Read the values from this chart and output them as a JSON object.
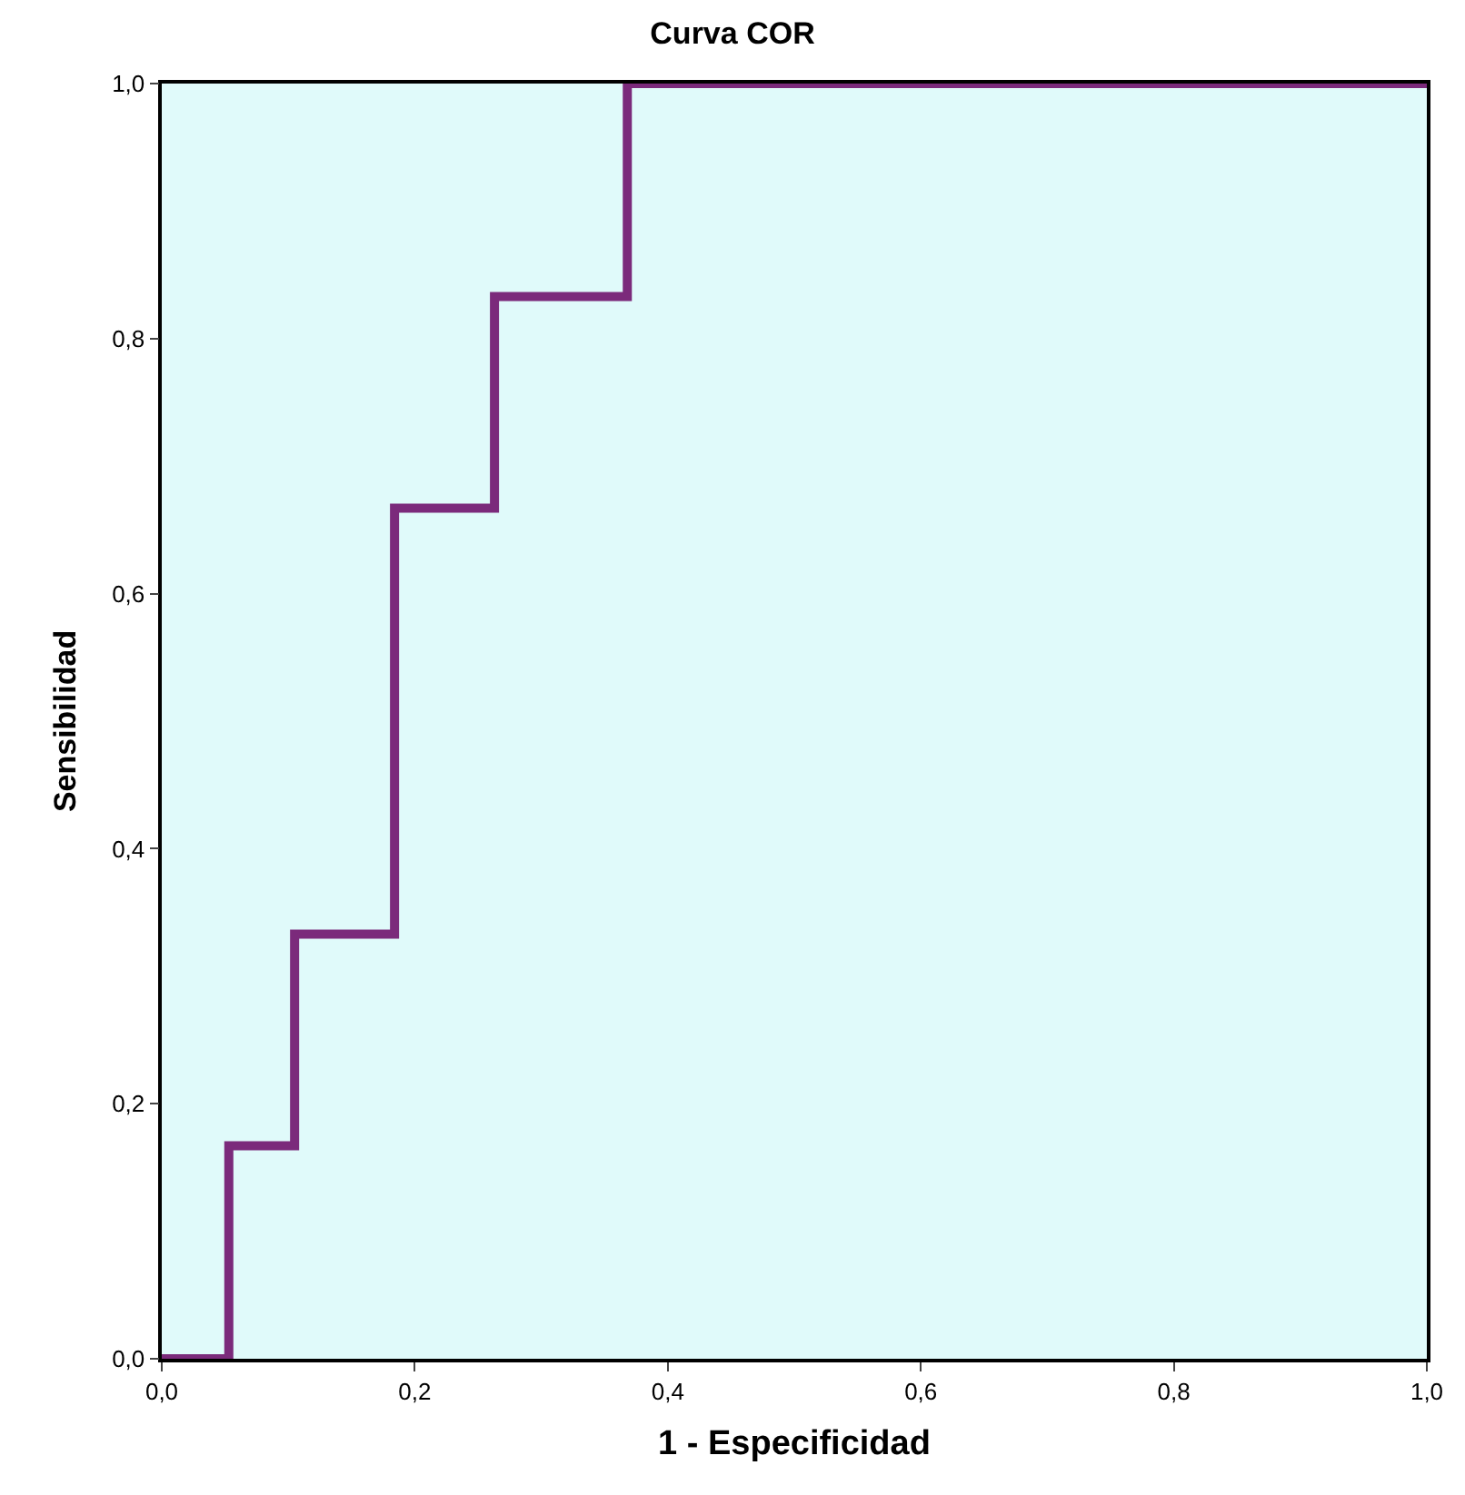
{
  "chart_data": {
    "type": "step",
    "title": "Curva COR",
    "xlabel": "1 - Especificidad",
    "ylabel": "Sensibilidad",
    "x": [
      0,
      0.053,
      0.105,
      0.184,
      0.263,
      0.368,
      1.0
    ],
    "series": [
      {
        "color": "#7b2a7b",
        "values": [
          0,
          0.167,
          0.333,
          0.667,
          0.833,
          1.0,
          1.0
        ]
      }
    ],
    "xlim": [
      0,
      1
    ],
    "ylim": [
      0,
      1
    ],
    "xticks": [
      {
        "value": 0,
        "label": "0,0"
      },
      {
        "value": 0.2,
        "label": "0,2"
      },
      {
        "value": 0.4,
        "label": "0,4"
      },
      {
        "value": 0.6,
        "label": "0,6"
      },
      {
        "value": 0.8,
        "label": "0,8"
      },
      {
        "value": 1,
        "label": "1,0"
      }
    ],
    "yticks": [
      {
        "value": 0,
        "label": "0,0"
      },
      {
        "value": 0.2,
        "label": "0,2"
      },
      {
        "value": 0.4,
        "label": "0,4"
      },
      {
        "value": 0.6,
        "label": "0,6"
      },
      {
        "value": 0.8,
        "label": "0,8"
      },
      {
        "value": 1,
        "label": "1,0"
      }
    ],
    "grid": false
  }
}
